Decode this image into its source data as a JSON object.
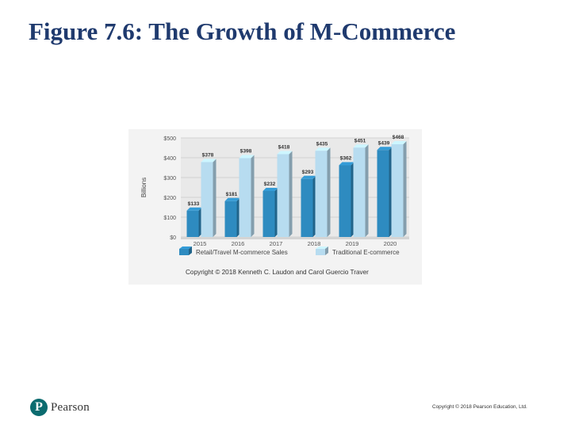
{
  "slide": {
    "title": "Figure 7.6: The Growth of M-Commerce",
    "footer_copyright": "Copyright © 2018 Pearson Education, Ltd.",
    "logo_text": "Pearson",
    "logo_mark": "P",
    "figure_copyright": "Copyright © 2018 Kenneth C. Laudon and Carol Guercio Traver"
  },
  "chart_data": {
    "type": "bar",
    "title": "",
    "xlabel": "",
    "ylabel": "Billions",
    "ylim": [
      0,
      500
    ],
    "yticks": [
      "$0",
      "$100",
      "$200",
      "$300",
      "$400",
      "$500"
    ],
    "categories": [
      "2015",
      "2016",
      "2017",
      "2018",
      "2019",
      "2020"
    ],
    "series": [
      {
        "name": "Retail/Travel M-commerce Sales",
        "values": [
          133,
          181,
          232,
          293,
          362,
          439
        ],
        "labels": [
          "$133",
          "$181",
          "$232",
          "$293",
          "$362",
          "$439"
        ],
        "color": "#2e8bc0"
      },
      {
        "name": "Traditional E-commerce",
        "values": [
          378,
          398,
          418,
          435,
          451,
          468
        ],
        "labels": [
          "$378",
          "$398",
          "$418",
          "$435",
          "$451",
          "$468"
        ],
        "color": "#b7dcf0"
      }
    ],
    "grid": true,
    "legend_position": "bottom"
  }
}
